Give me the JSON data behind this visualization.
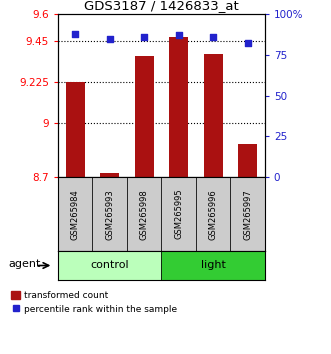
{
  "title": "GDS3187 / 1426833_at",
  "samples": [
    "GSM265984",
    "GSM265993",
    "GSM265998",
    "GSM265995",
    "GSM265996",
    "GSM265997"
  ],
  "bar_values": [
    9.225,
    8.72,
    9.37,
    9.475,
    9.38,
    8.88
  ],
  "dot_percentiles": [
    88,
    85,
    86,
    87,
    86,
    82
  ],
  "groups": [
    {
      "label": "control",
      "indices": [
        0,
        1,
        2
      ],
      "color": "#bbffbb"
    },
    {
      "label": "light",
      "indices": [
        3,
        4,
        5
      ],
      "color": "#33cc33"
    }
  ],
  "ylim_left": [
    8.7,
    9.6
  ],
  "ylim_right": [
    0,
    100
  ],
  "yticks_left": [
    8.7,
    9.0,
    9.225,
    9.45,
    9.6
  ],
  "ytick_labels_left": [
    "8.7",
    "9",
    "9.225",
    "9.45",
    "9.6"
  ],
  "yticks_right": [
    0,
    25,
    50,
    75,
    100
  ],
  "ytick_labels_right": [
    "0",
    "25",
    "50",
    "75",
    "100%"
  ],
  "hlines": [
    9.0,
    9.225,
    9.45
  ],
  "bar_color": "#aa1111",
  "dot_color": "#2222cc",
  "agent_label": "agent",
  "legend_bar_label": "transformed count",
  "legend_dot_label": "percentile rank within the sample"
}
